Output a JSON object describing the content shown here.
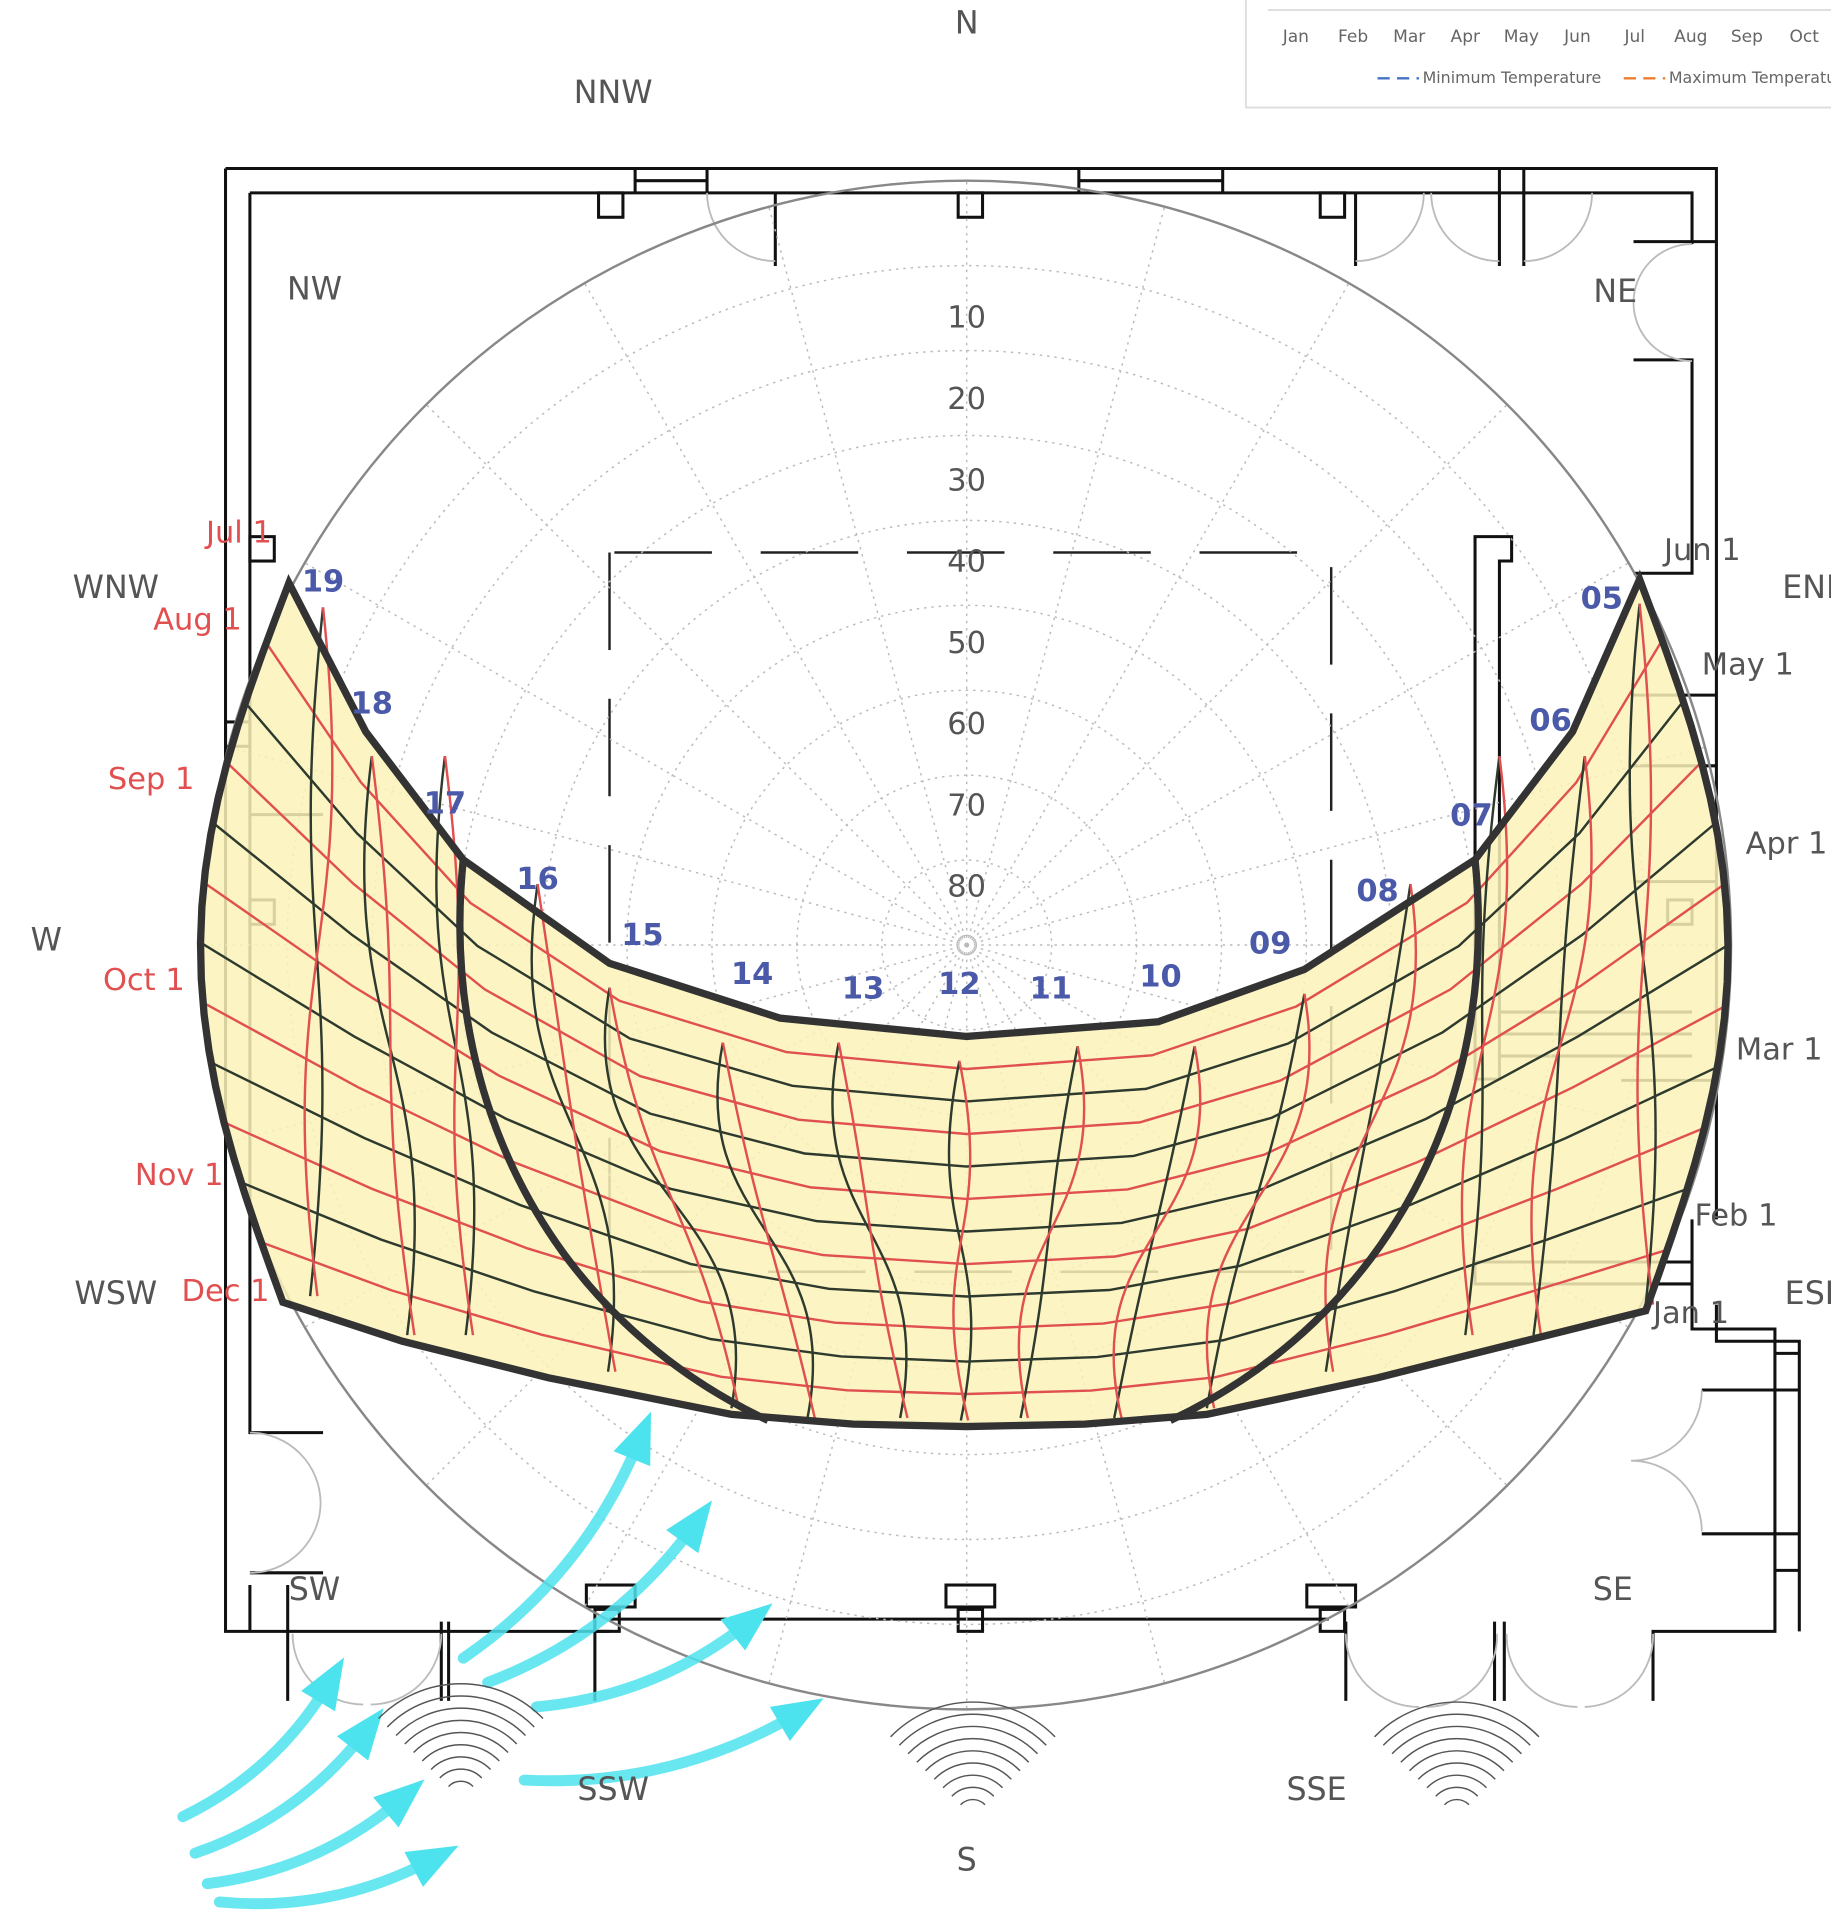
{
  "compass": [
    "N",
    "NNW",
    "NW",
    "WNW",
    "W",
    "WSW",
    "SW",
    "SSW",
    "S",
    "SSE",
    "SE",
    "ESE",
    "ENE",
    "NE"
  ],
  "altitudes": [
    "10",
    "20",
    "30",
    "40",
    "50",
    "60",
    "70",
    "80"
  ],
  "hours": [
    "19",
    "18",
    "17",
    "16",
    "15",
    "14",
    "13",
    "12",
    "11",
    "10",
    "09",
    "08",
    "07",
    "06",
    "05"
  ],
  "dates": [
    "Jul 1",
    "Aug 1",
    "Sep 1",
    "Oct 1",
    "Nov 1",
    "Dec 1",
    "Jun 1",
    "May 1",
    "Apr 1",
    "Mar 1",
    "Feb 1",
    "Jan 1"
  ],
  "legend": {
    "months": [
      "Jan",
      "Feb",
      "Mar",
      "Apr",
      "May",
      "Jun",
      "Jul",
      "Aug",
      "Sep",
      "Oct"
    ],
    "series": [
      "Minimum Temperature",
      "Maximum Temperature"
    ]
  }
}
